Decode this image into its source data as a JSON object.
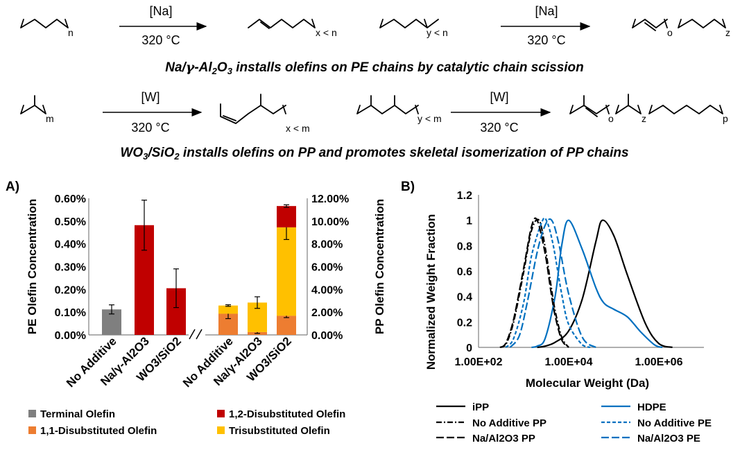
{
  "scheme": {
    "pe": {
      "r1_sub": "n",
      "r1_catalyst": "[Na]",
      "r1_temp": "320 °C",
      "r1_product_sub": "x < n",
      "r2_sub": "y < n",
      "r2_catalyst": "[Na]",
      "r2_temp": "320 °C",
      "r2_product_sub_o": "o",
      "r2_product_sub_z": "z",
      "caption": "Na/γ-Al2O3 installs olefins on PE chains by catalytic chain scission",
      "caption_parts": {
        "a": "Na/",
        "gamma": "γ",
        "b": "-Al",
        "s1": "2",
        "c": "O",
        "s2": "3",
        "rest": " installs olefins on PE chains by catalytic chain scission"
      }
    },
    "pp": {
      "r1_sub": "m",
      "r1_catalyst": "[W]",
      "r1_temp": "320 °C",
      "r1_product_sub": "x < m",
      "r2_sub": "y < m",
      "r2_catalyst": "[W]",
      "r2_temp": "320 °C",
      "r2_product_sub_o": "o",
      "r2_product_sub_z": "z",
      "r2_product_sub_p": "p",
      "caption": "WO3/SiO2 installs olefins on PP and promotes skeletal isomerization of PP chains",
      "caption_parts": {
        "a": "WO",
        "s1": "3",
        "b": "/SiO",
        "s2": "2",
        "rest": " installs olefins on PP and promotes skeletal isomerization of PP chains"
      }
    }
  },
  "colors": {
    "terminal": "#7f7f7f",
    "disub12": "#c00000",
    "disub11": "#ed7d31",
    "trisub": "#ffc000",
    "blue": "#0070c0",
    "black": "#000000",
    "axis": "#7f7f7f"
  },
  "chart_data": [
    {
      "panel": "A)",
      "type": "bar",
      "stacked": true,
      "title": "",
      "categories": [
        "No Additive",
        "Na/γ-Al2O3",
        "WO3/SiO2",
        "No Additive",
        "Na/γ-Al2O3",
        "WO3/SiO2"
      ],
      "axis_break_label": "//",
      "pe_axis": {
        "ylabel": "PE Olefin Concentration",
        "ylim": [
          0,
          0.006
        ],
        "ticks": [
          "0.00%",
          "0.10%",
          "0.20%",
          "0.30%",
          "0.40%",
          "0.50%",
          "0.60%"
        ]
      },
      "pp_axis": {
        "ylabel": "PP Olefin Concentration",
        "ylim": [
          0,
          0.12
        ],
        "ticks": [
          "0.00%",
          "2.00%",
          "4.00%",
          "6.00%",
          "8.00%",
          "10.00%",
          "12.00%"
        ]
      },
      "series": [
        {
          "name": "Terminal Olefin",
          "key": "terminal",
          "axis": "pe",
          "values": [
            0.00112,
            0,
            0,
            0,
            0,
            0
          ],
          "err": [
            0.0002,
            0,
            0,
            0,
            0,
            0
          ]
        },
        {
          "name": "1,2-Disubstituted Olefin",
          "key": "disub12",
          "axis": "mixed",
          "values": [
            0,
            0.00482,
            0.00205,
            0,
            0,
            0.0187
          ],
          "err": [
            0,
            0.0011,
            0.00085,
            0,
            0,
            0.0011
          ]
        },
        {
          "name": "1,1-Disubstituted Olefin",
          "key": "disub11",
          "axis": "pp",
          "values": [
            0,
            0,
            0,
            0.0186,
            0.0025,
            0.0168
          ],
          "err": [
            0,
            0,
            0,
            0.0043,
            0.0012,
            0.0016
          ]
        },
        {
          "name": "Trisubstituted Olefin",
          "key": "trisub",
          "axis": "pp",
          "values": [
            0,
            0,
            0,
            0.0072,
            0.0259,
            0.0777
          ],
          "err": [
            0,
            0,
            0,
            0.0007,
            0.0051,
            0.0107
          ]
        }
      ],
      "legend": [
        "Terminal Olefin",
        "1,2-Disubstituted Olefin",
        "1,1-Disubstituted Olefin",
        "Trisubstituted Olefin"
      ]
    },
    {
      "panel": "B)",
      "type": "line",
      "xlabel": "Molecular Weight (Da)",
      "ylabel": "Normalized Weight Fraction",
      "xscale": "log",
      "xlim": [
        100,
        10000000
      ],
      "xticks": [
        "1.00E+02",
        "1.00E+04",
        "1.00E+06"
      ],
      "ylim": [
        0,
        1.2
      ],
      "yticks": [
        "0",
        "0.2",
        "0.4",
        "0.6",
        "0.8",
        "1",
        "1.2"
      ],
      "series": [
        {
          "name": "iPP",
          "color": "black",
          "dash": "solid",
          "peak_Da": 56000,
          "points": [
            [
              2000,
              0
            ],
            [
              3000,
              0.01
            ],
            [
              5000,
              0.04
            ],
            [
              10000,
              0.13
            ],
            [
              20000,
              0.38
            ],
            [
              40000,
              0.83
            ],
            [
              56000,
              1.0
            ],
            [
              100000,
              0.88
            ],
            [
              200000,
              0.57
            ],
            [
              500000,
              0.19
            ],
            [
              1000000,
              0.03
            ],
            [
              2000000,
              0
            ]
          ]
        },
        {
          "name": "HDPE",
          "color": "blue",
          "dash": "solid",
          "peak_Da": 10000,
          "points": [
            [
              1500,
              0
            ],
            [
              2000,
              0.01
            ],
            [
              3000,
              0.07
            ],
            [
              5000,
              0.4
            ],
            [
              7000,
              0.8
            ],
            [
              10000,
              1.0
            ],
            [
              20000,
              0.77
            ],
            [
              40000,
              0.47
            ],
            [
              60000,
              0.35
            ],
            [
              100000,
              0.3
            ],
            [
              200000,
              0.24
            ],
            [
              400000,
              0.12
            ],
            [
              800000,
              0.02
            ],
            [
              1200000,
              0
            ]
          ]
        },
        {
          "name": "No Additive PP",
          "color": "black",
          "dash": "dashdot",
          "peak_Da": 2200,
          "points": [
            [
              300,
              0
            ],
            [
              400,
              0.02
            ],
            [
              600,
              0.2
            ],
            [
              1000,
              0.59
            ],
            [
              1500,
              0.92
            ],
            [
              2200,
              1.0
            ],
            [
              3000,
              0.79
            ],
            [
              4000,
              0.5
            ],
            [
              5000,
              0.29
            ],
            [
              7000,
              0.08
            ],
            [
              10000,
              0
            ]
          ]
        },
        {
          "name": "No Additive PE",
          "color": "blue",
          "dash": "dash",
          "peak_Da": 3200,
          "points": [
            [
              400,
              0
            ],
            [
              600,
              0.07
            ],
            [
              1000,
              0.35
            ],
            [
              1500,
              0.72
            ],
            [
              2500,
              0.98
            ],
            [
              3200,
              1.0
            ],
            [
              4500,
              0.81
            ],
            [
              7000,
              0.42
            ],
            [
              10000,
              0.18
            ],
            [
              20000,
              0.02
            ],
            [
              30000,
              0
            ]
          ]
        },
        {
          "name": "Na/Al2O3 PP",
          "color": "black",
          "dash": "longdash",
          "peak_Da": 2000,
          "points": [
            [
              300,
              0
            ],
            [
              400,
              0.03
            ],
            [
              600,
              0.22
            ],
            [
              1000,
              0.62
            ],
            [
              1500,
              0.95
            ],
            [
              2000,
              1.0
            ],
            [
              3000,
              0.74
            ],
            [
              4000,
              0.45
            ],
            [
              5000,
              0.25
            ],
            [
              7000,
              0.06
            ],
            [
              10000,
              0
            ]
          ]
        },
        {
          "name": "Na/Al2O3 PE",
          "color": "blue",
          "dash": "longdash",
          "peak_Da": 4200,
          "points": [
            [
              500,
              0
            ],
            [
              800,
              0.09
            ],
            [
              1200,
              0.35
            ],
            [
              2000,
              0.75
            ],
            [
              3000,
              0.96
            ],
            [
              4200,
              1.0
            ],
            [
              6000,
              0.82
            ],
            [
              10000,
              0.42
            ],
            [
              20000,
              0.08
            ],
            [
              40000,
              0
            ]
          ]
        }
      ],
      "legend": [
        "iPP",
        "HDPE",
        "No Additive PP",
        "No Additive PE",
        "Na/Al2O3 PP",
        "Na/Al2O3 PE"
      ]
    }
  ]
}
